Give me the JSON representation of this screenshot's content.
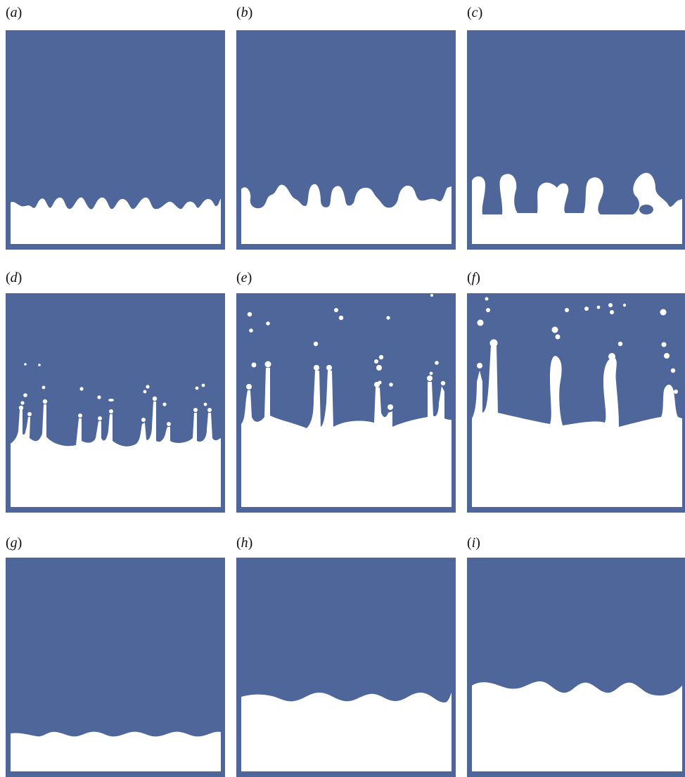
{
  "figure": {
    "colors": {
      "upper_fluid": "#4e6699",
      "lower_fluid": "#ffffff",
      "frame": "#4e6699"
    },
    "panels": [
      {
        "id": "a",
        "label": "a"
      },
      {
        "id": "b",
        "label": "b"
      },
      {
        "id": "c",
        "label": "c"
      },
      {
        "id": "d",
        "label": "d"
      },
      {
        "id": "e",
        "label": "e"
      },
      {
        "id": "f",
        "label": "f"
      },
      {
        "id": "g",
        "label": "g"
      },
      {
        "id": "h",
        "label": "h"
      },
      {
        "id": "i",
        "label": "i"
      }
    ]
  }
}
